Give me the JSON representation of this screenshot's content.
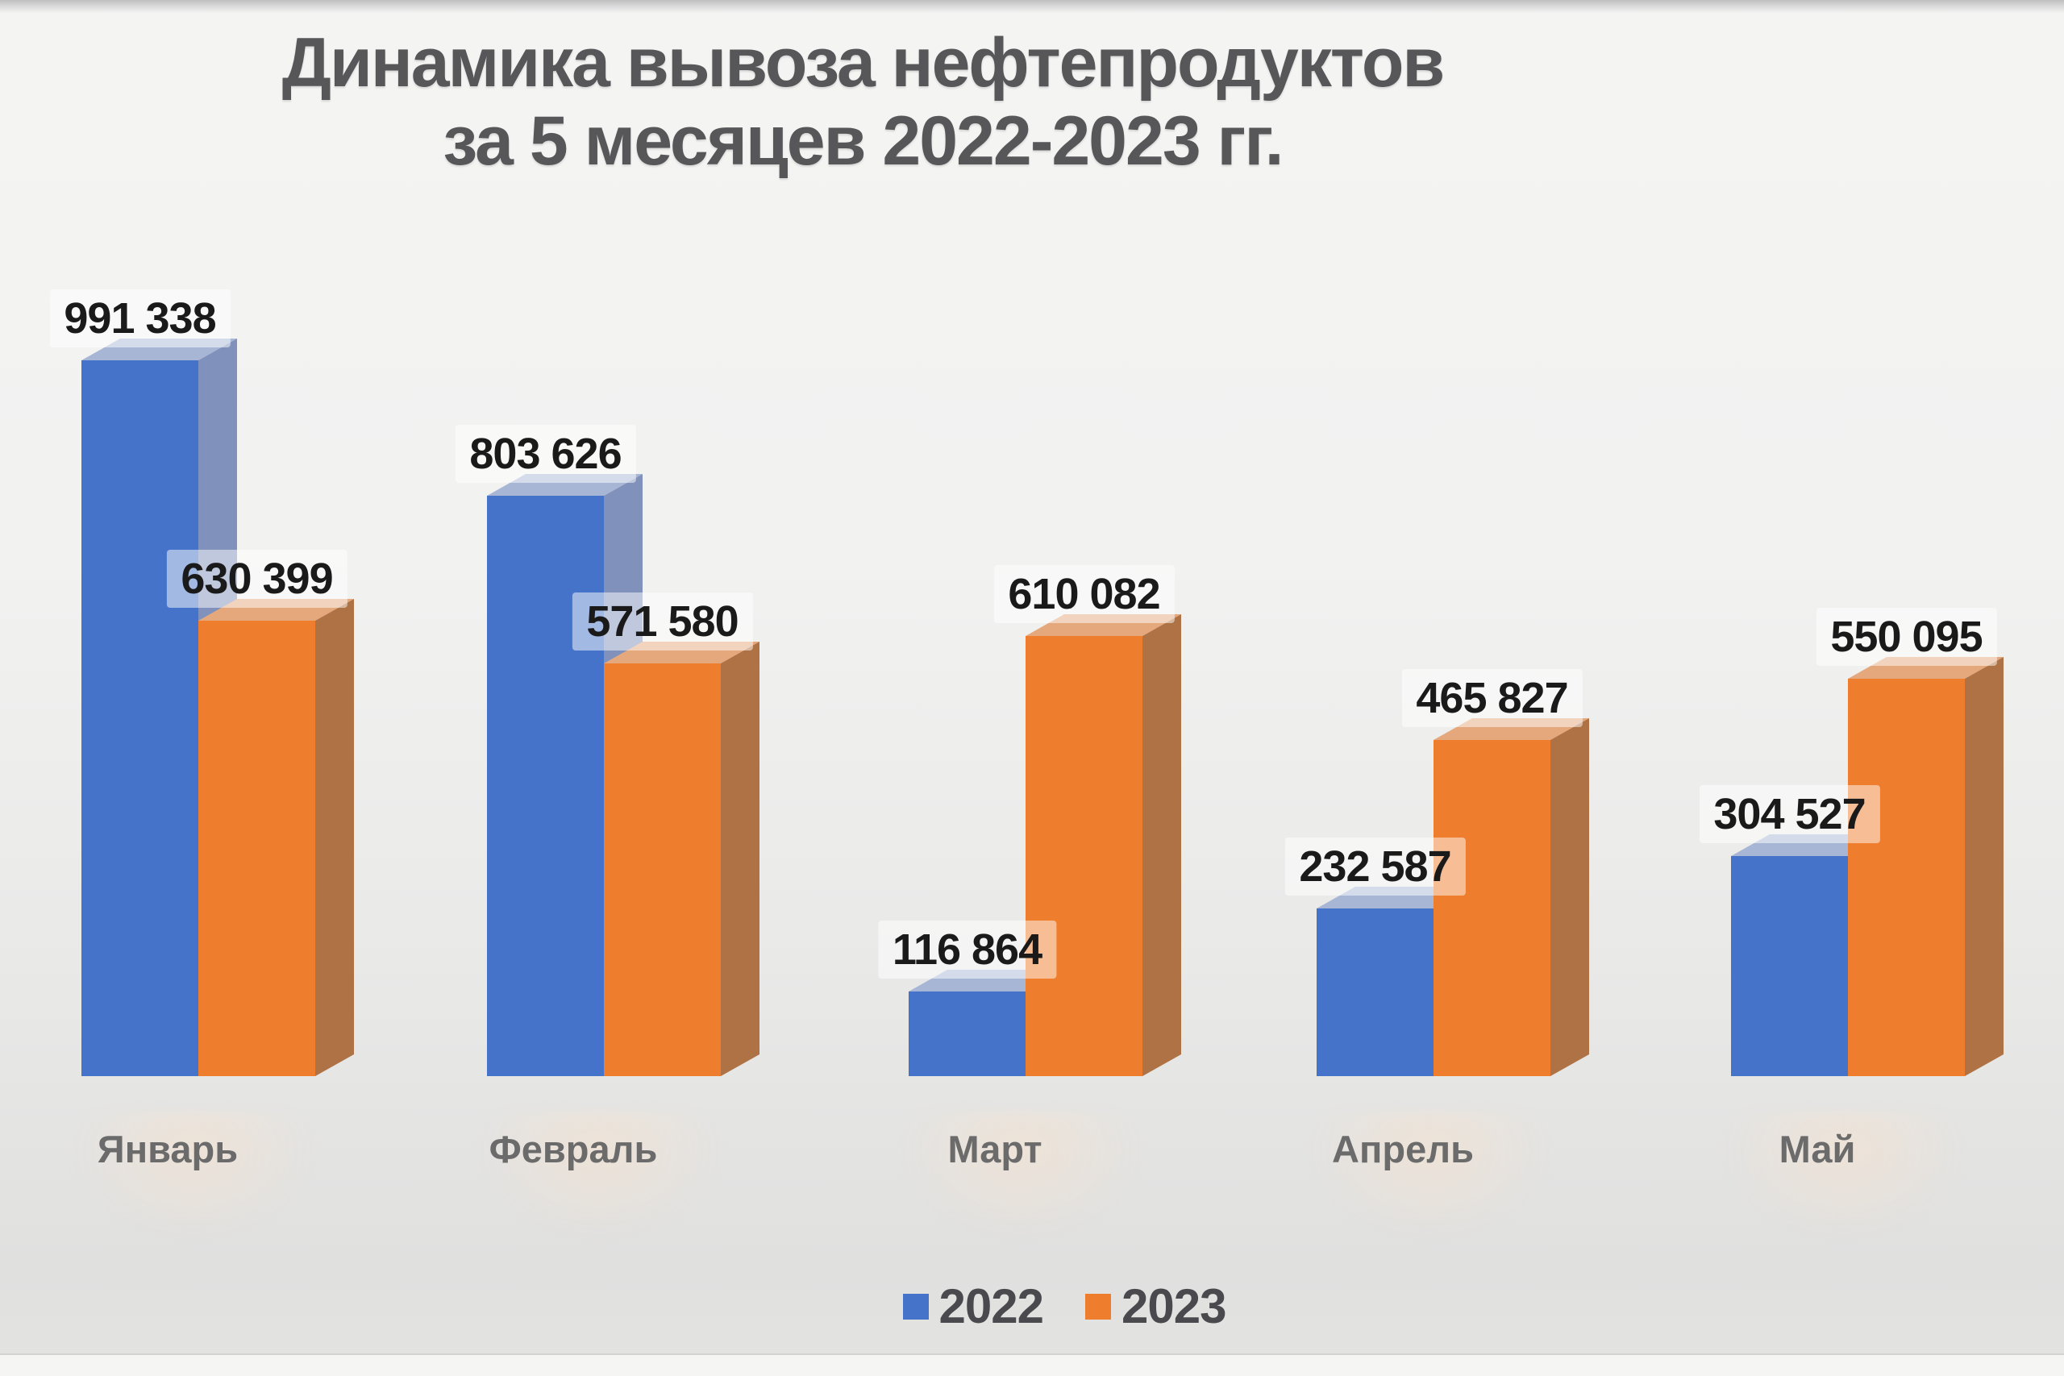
{
  "title": {
    "line1": "Динамика вывоза нефтепродуктов",
    "line2": "за 5 месяцев 2022-2023 гг."
  },
  "legend": {
    "items": [
      {
        "label": "2022",
        "color": "#4573C9"
      },
      {
        "label": "2023",
        "color": "#EE7D2D"
      }
    ]
  },
  "chart_data": {
    "type": "bar",
    "style": "3d-grouped-columns",
    "title": "Динамика вывоза нефтепродуктов за 5 месяцев 2022-2023 гг.",
    "categories": [
      "Январь",
      "Февраль",
      "Март",
      "Апрель",
      "Май"
    ],
    "series": [
      {
        "name": "2022",
        "values": [
          991338,
          803626,
          116864,
          232587,
          304527
        ],
        "color": "#4573C9",
        "side_color": "#8091BB",
        "top_color": "#A8B6D5"
      },
      {
        "name": "2023",
        "values": [
          630399,
          571580,
          610082,
          465827,
          550095
        ],
        "color": "#EE7D2D",
        "side_color": "#AF7245",
        "top_color": "#E5A87D"
      }
    ],
    "value_labels": "above bars, thousands separated by space",
    "axes": "hidden",
    "gridlines": false,
    "legend_position": "bottom",
    "value_range_implied": [
      0,
      991338
    ]
  }
}
